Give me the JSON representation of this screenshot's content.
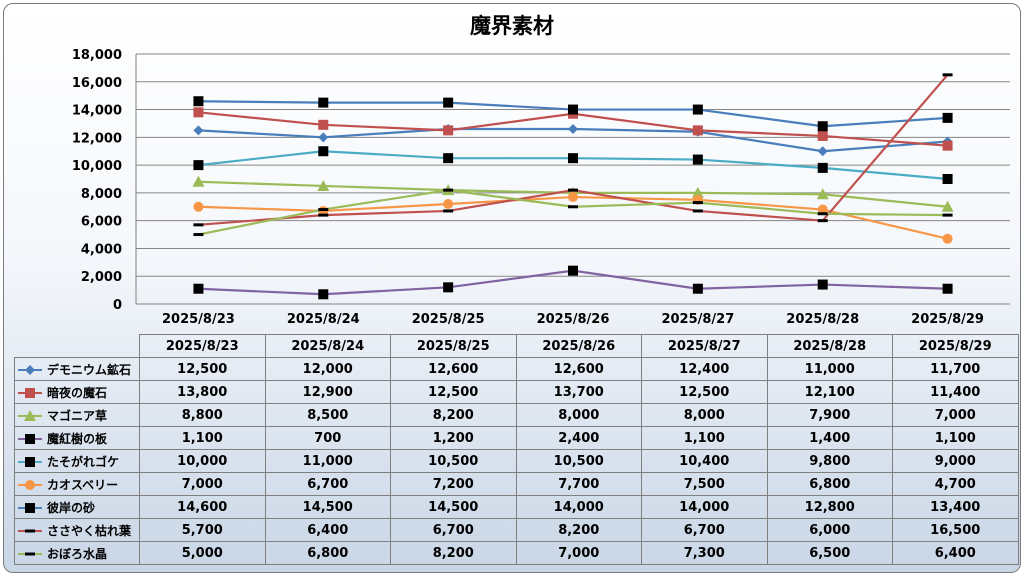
{
  "chart_data": {
    "type": "line",
    "title": "魔界素材",
    "xlabel": "",
    "ylabel": "",
    "ylim": [
      0,
      18000
    ],
    "y_ticks": [
      "0",
      "2,000",
      "4,000",
      "6,000",
      "8,000",
      "10,000",
      "12,000",
      "14,000",
      "16,000",
      "18,000"
    ],
    "categories": [
      "2025/8/23",
      "2025/8/24",
      "2025/8/25",
      "2025/8/26",
      "2025/8/27",
      "2025/8/28",
      "2025/8/29"
    ],
    "grid": true,
    "legend": "data-table",
    "series": [
      {
        "name": "デモニウム鉱石",
        "color": "#4a7ebb",
        "marker": "diamond",
        "values": [
          12500,
          12000,
          12600,
          12600,
          12400,
          11000,
          11700
        ],
        "labels": [
          "12,500",
          "12,000",
          "12,600",
          "12,600",
          "12,400",
          "11,000",
          "11,700"
        ]
      },
      {
        "name": "暗夜の魔石",
        "color": "#c0504d",
        "marker": "square",
        "values": [
          13800,
          12900,
          12500,
          13700,
          12500,
          12100,
          11400
        ],
        "labels": [
          "13,800",
          "12,900",
          "12,500",
          "13,700",
          "12,500",
          "12,100",
          "11,400"
        ]
      },
      {
        "name": "マゴニア草",
        "color": "#9bbb59",
        "marker": "triangle",
        "values": [
          8800,
          8500,
          8200,
          8000,
          8000,
          7900,
          7000
        ],
        "labels": [
          "8,800",
          "8,500",
          "8,200",
          "8,000",
          "8,000",
          "7,900",
          "7,000"
        ]
      },
      {
        "name": "魔紅樹の板",
        "color": "#8064a2",
        "marker": "blacksquare",
        "values": [
          1100,
          700,
          1200,
          2400,
          1100,
          1400,
          1100
        ],
        "labels": [
          "1,100",
          "700",
          "1,200",
          "2,400",
          "1,100",
          "1,400",
          "1,100"
        ]
      },
      {
        "name": "たそがれゴケ",
        "color": "#4bacc6",
        "marker": "blacksquare",
        "values": [
          10000,
          11000,
          10500,
          10500,
          10400,
          9800,
          9000
        ],
        "labels": [
          "10,000",
          "11,000",
          "10,500",
          "10,500",
          "10,400",
          "9,800",
          "9,000"
        ]
      },
      {
        "name": "カオスベリー",
        "color": "#f79646",
        "marker": "circle",
        "values": [
          7000,
          6700,
          7200,
          7700,
          7500,
          6800,
          4700
        ],
        "labels": [
          "7,000",
          "6,700",
          "7,200",
          "7,700",
          "7,500",
          "6,800",
          "4,700"
        ]
      },
      {
        "name": "彼岸の砂",
        "color": "#4a7ebb",
        "marker": "blacksquare",
        "values": [
          14600,
          14500,
          14500,
          14000,
          14000,
          12800,
          13400
        ],
        "labels": [
          "14,600",
          "14,500",
          "14,500",
          "14,000",
          "14,000",
          "12,800",
          "13,400"
        ]
      },
      {
        "name": "ささやく枯れ葉",
        "color": "#c0504d",
        "marker": "dash",
        "values": [
          5700,
          6400,
          6700,
          8200,
          6700,
          6000,
          16500
        ],
        "labels": [
          "5,700",
          "6,400",
          "6,700",
          "8,200",
          "6,700",
          "6,000",
          "16,500"
        ]
      },
      {
        "name": "おぼろ水晶",
        "color": "#9bbb59",
        "marker": "dash",
        "values": [
          5000,
          6800,
          8200,
          7000,
          7300,
          6500,
          6400
        ],
        "labels": [
          "5,000",
          "6,800",
          "8,200",
          "7,000",
          "7,300",
          "6,500",
          "6,400"
        ]
      }
    ]
  }
}
